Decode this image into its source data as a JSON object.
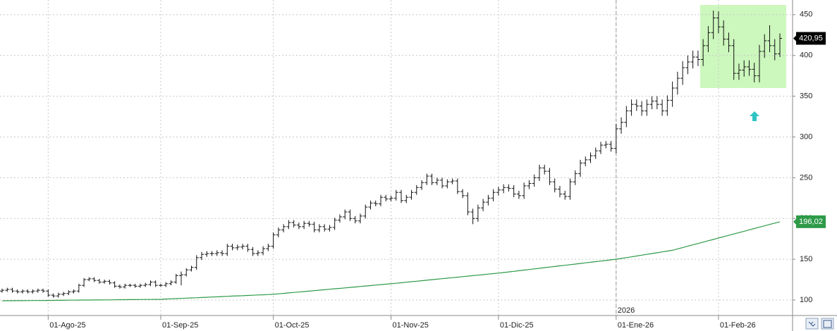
{
  "chart_data": {
    "type": "ohlc",
    "ylim": [
      81,
      468
    ],
    "yticks": [
      100,
      150,
      200,
      250,
      300,
      350,
      400,
      450
    ],
    "grid": true,
    "year_label": "2026",
    "categories": [
      null,
      null,
      null,
      null,
      null,
      null,
      null,
      null,
      null,
      "01-Ago-25",
      null,
      null,
      null,
      null,
      null,
      null,
      null,
      null,
      null,
      null,
      null,
      null,
      null,
      null,
      null,
      null,
      null,
      null,
      null,
      null,
      null,
      "01-Sep-25",
      null,
      null,
      null,
      null,
      null,
      null,
      null,
      null,
      null,
      null,
      null,
      null,
      null,
      null,
      null,
      null,
      null,
      null,
      null,
      null,
      null,
      "01-Oct-25",
      null,
      null,
      null,
      null,
      null,
      null,
      null,
      null,
      null,
      null,
      null,
      null,
      null,
      null,
      null,
      null,
      null,
      null,
      null,
      null,
      null,
      null,
      "01-Nov-25",
      null,
      null,
      null,
      null,
      null,
      null,
      null,
      null,
      null,
      null,
      null,
      null,
      null,
      null,
      null,
      null,
      null,
      null,
      null,
      null,
      "01-Dic-25",
      null,
      null,
      null,
      null,
      null,
      null,
      null,
      null,
      null,
      null,
      null,
      null,
      null,
      null,
      null,
      null,
      null,
      null,
      null,
      null,
      null,
      null,
      "01-Ene-26",
      null,
      null,
      null,
      null,
      null,
      null,
      null,
      null,
      null,
      null,
      null,
      null,
      null,
      null,
      null,
      null,
      null,
      null,
      null,
      "01-Feb-26",
      null,
      null,
      null,
      null,
      null,
      null,
      null,
      null,
      null,
      null,
      null,
      null
    ],
    "series": [
      {
        "type": "ohlc",
        "color": "#111111",
        "open": [
          111,
          112,
          113,
          111,
          110,
          111,
          110,
          111,
          112,
          111,
          106,
          105,
          107,
          108,
          110,
          111,
          118,
          125,
          126,
          124,
          122,
          123,
          121,
          117,
          116,
          118,
          118,
          117,
          118,
          119,
          122,
          118,
          118,
          120,
          122,
          130,
          131,
          137,
          140,
          152,
          156,
          157,
          157,
          158,
          157,
          166,
          164,
          165,
          166,
          162,
          157,
          158,
          163,
          166,
          180,
          186,
          190,
          195,
          192,
          190,
          194,
          193,
          186,
          190,
          187,
          189,
          198,
          202,
          208,
          200,
          197,
          203,
          214,
          219,
          218,
          226,
          224,
          225,
          232,
          222,
          226,
          232,
          238,
          244,
          252,
          244,
          247,
          240,
          245,
          246,
          233,
          228,
          208,
          200,
          213,
          220,
          225,
          232,
          235,
          238,
          237,
          230,
          228,
          240,
          243,
          250,
          262,
          258,
          245,
          236,
          230,
          227,
          245,
          255,
          268,
          272,
          277,
          283,
          290,
          291,
          286,
          310,
          318,
          332,
          340,
          338,
          332,
          340,
          344,
          340,
          332,
          345,
          360,
          372,
          385,
          392,
          398,
          395,
          412,
          428,
          446,
          435,
          420,
          412,
          378,
          382,
          386,
          383,
          375,
          405,
          418,
          412,
          402
        ],
        "high": [
          114,
          115,
          115,
          113,
          113,
          113,
          113,
          114,
          114,
          113,
          108,
          109,
          110,
          112,
          113,
          120,
          127,
          128,
          128,
          126,
          125,
          125,
          123,
          119,
          120,
          120,
          120,
          120,
          121,
          124,
          124,
          120,
          122,
          124,
          132,
          135,
          139,
          142,
          155,
          159,
          160,
          160,
          161,
          161,
          169,
          169,
          168,
          169,
          169,
          165,
          161,
          166,
          169,
          183,
          189,
          193,
          198,
          198,
          195,
          197,
          197,
          196,
          193,
          193,
          192,
          201,
          205,
          211,
          211,
          203,
          206,
          217,
          222,
          222,
          229,
          229,
          228,
          235,
          235,
          229,
          235,
          241,
          247,
          255,
          255,
          250,
          250,
          248,
          249,
          249,
          236,
          232,
          212,
          217,
          224,
          229,
          236,
          239,
          242,
          242,
          241,
          234,
          244,
          247,
          254,
          266,
          266,
          262,
          249,
          240,
          234,
          249,
          259,
          272,
          276,
          281,
          287,
          294,
          295,
          295,
          316,
          324,
          338,
          346,
          346,
          344,
          346,
          350,
          350,
          346,
          351,
          368,
          380,
          393,
          400,
          406,
          406,
          420,
          436,
          455,
          454,
          443,
          428,
          420,
          390,
          394,
          394,
          391,
          413,
          426,
          437,
          420,
          427
        ],
        "low": [
          109,
          110,
          109,
          108,
          108,
          108,
          108,
          109,
          109,
          104,
          103,
          103,
          105,
          106,
          108,
          109,
          116,
          123,
          122,
          120,
          120,
          119,
          115,
          114,
          114,
          116,
          115,
          115,
          116,
          117,
          116,
          116,
          116,
          118,
          120,
          118,
          129,
          135,
          137,
          149,
          153,
          154,
          154,
          154,
          154,
          161,
          161,
          162,
          159,
          154,
          154,
          155,
          160,
          163,
          177,
          183,
          187,
          189,
          187,
          187,
          190,
          183,
          183,
          184,
          184,
          186,
          195,
          199,
          197,
          194,
          194,
          200,
          211,
          215,
          215,
          221,
          221,
          222,
          219,
          219,
          223,
          229,
          235,
          241,
          241,
          241,
          237,
          237,
          242,
          230,
          225,
          204,
          193,
          196,
          209,
          216,
          221,
          228,
          231,
          233,
          226,
          224,
          224,
          236,
          239,
          246,
          254,
          241,
          232,
          226,
          223,
          223,
          241,
          251,
          264,
          268,
          273,
          279,
          286,
          282,
          280,
          304,
          312,
          326,
          332,
          326,
          326,
          334,
          334,
          326,
          326,
          337,
          352,
          364,
          377,
          384,
          387,
          387,
          404,
          420,
          427,
          412,
          404,
          370,
          370,
          374,
          375,
          367,
          367,
          397,
          404,
          394,
          398
        ],
        "close": [
          112,
          113,
          111,
          110,
          111,
          110,
          111,
          112,
          111,
          106,
          105,
          107,
          108,
          110,
          111,
          118,
          125,
          126,
          124,
          122,
          123,
          121,
          117,
          116,
          118,
          118,
          117,
          118,
          119,
          122,
          118,
          118,
          120,
          122,
          130,
          131,
          137,
          140,
          152,
          156,
          157,
          157,
          158,
          157,
          166,
          164,
          165,
          166,
          162,
          157,
          158,
          163,
          166,
          180,
          186,
          190,
          195,
          192,
          190,
          194,
          193,
          186,
          190,
          187,
          189,
          198,
          202,
          208,
          200,
          197,
          203,
          214,
          219,
          218,
          226,
          224,
          225,
          232,
          222,
          226,
          232,
          238,
          244,
          252,
          244,
          247,
          240,
          245,
          246,
          233,
          228,
          208,
          200,
          213,
          220,
          225,
          232,
          235,
          238,
          237,
          230,
          228,
          240,
          243,
          250,
          262,
          258,
          245,
          236,
          230,
          227,
          245,
          255,
          268,
          272,
          277,
          283,
          290,
          291,
          286,
          310,
          318,
          332,
          340,
          338,
          332,
          340,
          344,
          340,
          332,
          345,
          360,
          372,
          385,
          392,
          398,
          395,
          412,
          428,
          446,
          435,
          420,
          412,
          378,
          382,
          386,
          383,
          375,
          405,
          418,
          412,
          402,
          420.95
        ],
        "last_label": {
          "value": 420.95,
          "label": "420,95"
        }
      },
      {
        "type": "line",
        "color": "#2e9a48",
        "values": [
          99.0,
          99.1,
          99.1,
          99.2,
          99.2,
          99.3,
          99.4,
          99.4,
          99.5,
          99.5,
          99.6,
          99.7,
          99.7,
          99.8,
          99.8,
          99.9,
          100.0,
          100.0,
          100.1,
          100.1,
          100.2,
          100.2,
          100.3,
          100.4,
          100.4,
          100.5,
          100.5,
          100.6,
          100.7,
          100.7,
          100.8,
          100.9,
          101.2,
          101.5,
          101.7,
          102.0,
          102.3,
          102.6,
          102.8,
          103.1,
          103.4,
          103.7,
          103.9,
          104.2,
          104.5,
          104.8,
          105.1,
          105.3,
          105.6,
          105.9,
          106.2,
          106.4,
          106.7,
          107.0,
          107.6,
          108.1,
          108.7,
          109.3,
          109.8,
          110.4,
          110.9,
          111.5,
          112.1,
          112.6,
          113.2,
          113.8,
          114.3,
          114.9,
          115.5,
          116.0,
          116.6,
          117.2,
          117.7,
          118.3,
          118.9,
          119.4,
          120.0,
          120.6,
          121.2,
          121.9,
          122.5,
          123.1,
          123.7,
          124.3,
          125.0,
          125.6,
          126.2,
          126.8,
          127.4,
          128.0,
          128.7,
          129.3,
          129.9,
          130.5,
          131.1,
          131.8,
          132.4,
          133.0,
          133.7,
          134.5,
          135.2,
          135.9,
          136.7,
          137.4,
          138.2,
          138.9,
          139.7,
          140.4,
          141.1,
          141.9,
          142.6,
          143.4,
          144.1,
          144.8,
          145.6,
          146.3,
          147.1,
          147.8,
          148.5,
          149.3,
          150.0,
          151.0,
          152.0,
          153.0,
          154.0,
          155.0,
          156.0,
          157.0,
          158.0,
          159.0,
          160.0,
          161.0,
          162.7,
          164.3,
          166.0,
          167.7,
          169.3,
          171.0,
          172.7,
          174.3,
          176.0,
          177.7,
          179.3,
          181.0,
          182.7,
          184.3,
          186.0,
          187.7,
          189.3,
          191.0,
          192.7,
          194.3,
          196.02
        ],
        "last_label": {
          "value": 196.02,
          "label": "196,02"
        }
      }
    ]
  }
}
